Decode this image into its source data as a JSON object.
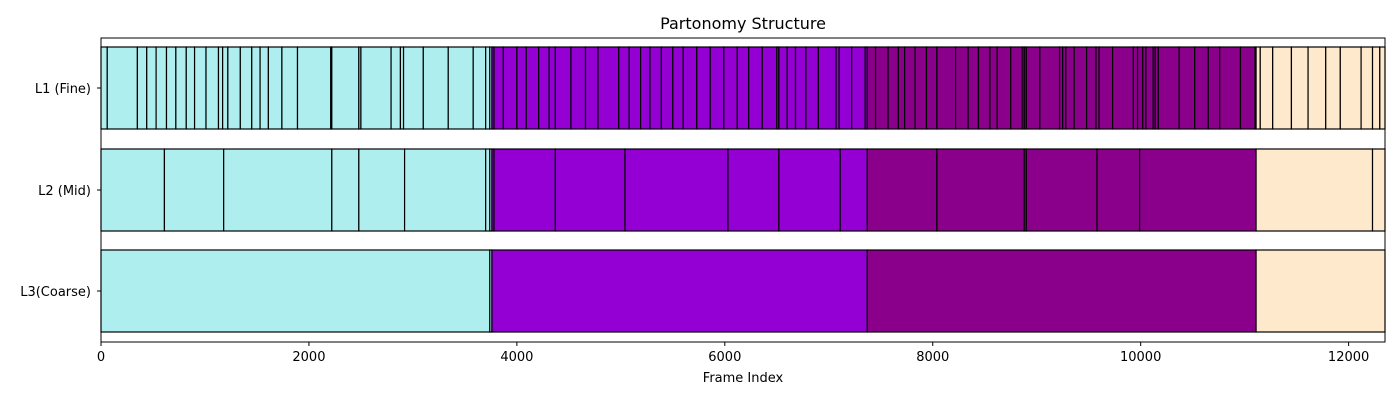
{
  "chart_data": {
    "type": "bar",
    "orientation": "horizontal-segments",
    "title": "Partonomy Structure",
    "xlabel": "Frame Index",
    "ylabel": "",
    "xlim": [
      0,
      12350
    ],
    "x_ticks": [
      0,
      2000,
      4000,
      6000,
      8000,
      10000,
      12000
    ],
    "grid": false,
    "colors": {
      "cyan": "#afeeee",
      "violet": "#9400d3",
      "magenta": "#8b008b",
      "bisque": "#ffe9cc",
      "edge": "#000000"
    },
    "rows": [
      {
        "label": "L1 (Fine)",
        "groups": [
          {
            "color": "cyan",
            "start": 0,
            "end": 3760,
            "boundaries": [
              60,
              350,
              440,
              530,
              630,
              720,
              820,
              900,
              1010,
              1130,
              1170,
              1220,
              1340,
              1450,
              1530,
              1610,
              1740,
              1890,
              2210,
              2220,
              2480,
              2500,
              2790,
              2880,
              2910,
              3100,
              3340,
              3580,
              3700,
              3740
            ]
          },
          {
            "color": "violet",
            "start": 3760,
            "end": 7370,
            "boundaries": [
              3780,
              3870,
              4000,
              4090,
              4210,
              4310,
              4370,
              4520,
              4660,
              4780,
              4980,
              5080,
              5190,
              5280,
              5390,
              5500,
              5600,
              5730,
              5860,
              5990,
              6120,
              6230,
              6360,
              6500,
              6520,
              6600,
              6680,
              6780,
              6900,
              7070,
              7100,
              7220,
              7350
            ]
          },
          {
            "color": "magenta",
            "start": 7370,
            "end": 11110,
            "boundaries": [
              7450,
              7570,
              7670,
              7730,
              7830,
              7940,
              8040,
              8220,
              8340,
              8440,
              8550,
              8620,
              8750,
              8860,
              8880,
              8900,
              9030,
              9220,
              9250,
              9280,
              9360,
              9480,
              9570,
              9600,
              9730,
              9930,
              9970,
              10020,
              10050,
              10120,
              10140,
              10170,
              10370,
              10520,
              10650,
              10760,
              10960,
              11100
            ]
          },
          {
            "color": "bisque",
            "start": 11110,
            "end": 12350,
            "boundaries": [
              11150,
              11270,
              11450,
              11610,
              11780,
              11920,
              12120,
              12230,
              12300
            ]
          }
        ]
      },
      {
        "label": "L2 (Mid)",
        "groups": [
          {
            "color": "cyan",
            "start": 0,
            "end": 3760,
            "boundaries": [
              610,
              1180,
              2220,
              2480,
              2920,
              3700,
              3740
            ]
          },
          {
            "color": "violet",
            "start": 3760,
            "end": 7370,
            "boundaries": [
              3780,
              4370,
              5040,
              6030,
              6520,
              7110
            ]
          },
          {
            "color": "magenta",
            "start": 7370,
            "end": 11110,
            "boundaries": [
              8040,
              8880,
              8900,
              9580,
              9990
            ]
          },
          {
            "color": "bisque",
            "start": 11110,
            "end": 12350,
            "boundaries": [
              12230
            ]
          }
        ]
      },
      {
        "label": "L3(Coarse)",
        "groups": [
          {
            "color": "cyan",
            "start": 0,
            "end": 3760,
            "boundaries": [
              3740
            ]
          },
          {
            "color": "violet",
            "start": 3760,
            "end": 7370,
            "boundaries": []
          },
          {
            "color": "magenta",
            "start": 7370,
            "end": 11110,
            "boundaries": []
          },
          {
            "color": "bisque",
            "start": 11110,
            "end": 12350,
            "boundaries": []
          }
        ]
      }
    ]
  }
}
